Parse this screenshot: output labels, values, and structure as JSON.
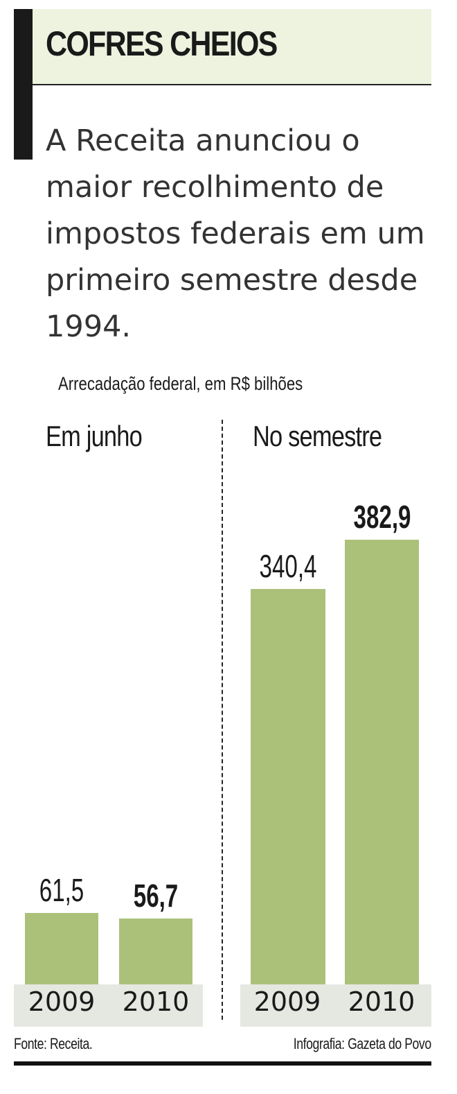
{
  "title": "COFRES CHEIOS",
  "lede": "A Receita anunciou o maior recolhimento de impostos federais em um primeiro semestre desde 1994.",
  "colors": {
    "bar": "#abc17a",
    "title_band": "#edf3df",
    "axis_band": "#e4e8e1"
  },
  "chart_data": [
    {
      "type": "bar",
      "title": "Em junho",
      "subtitle": "Arrecadação federal, em R$ bilhões",
      "categories": [
        "2009",
        "2010"
      ],
      "values": [
        61.5,
        56.7
      ],
      "labels": [
        "61,5",
        "56,7"
      ],
      "highlight": [
        false,
        true
      ],
      "ylim": [
        0,
        382.9
      ]
    },
    {
      "type": "bar",
      "title": "No semestre",
      "subtitle": "Arrecadação federal, em R$ bilhões",
      "categories": [
        "2009",
        "2010"
      ],
      "values": [
        340.4,
        382.9
      ],
      "labels": [
        "340,4",
        "382,9"
      ],
      "highlight": [
        false,
        true
      ],
      "ylim": [
        0,
        382.9
      ]
    }
  ],
  "footer": {
    "source": "Fonte: Receita.",
    "credit": "Infografia: Gazeta do Povo"
  }
}
